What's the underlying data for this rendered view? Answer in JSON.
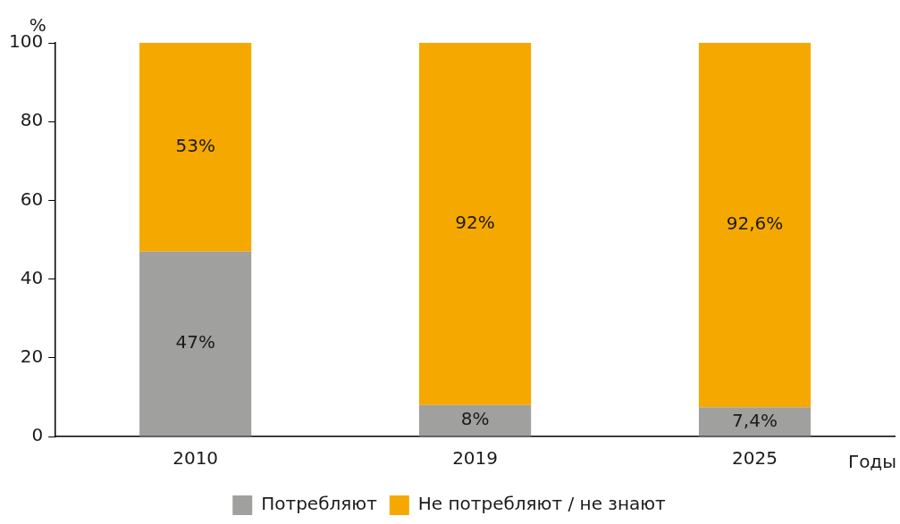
{
  "chart_data": {
    "type": "bar",
    "stacked": true,
    "xlabel": "Годы",
    "ylabel": "%",
    "categories": [
      "2010",
      "2019",
      "2025"
    ],
    "series": [
      {
        "name": "Потребляют",
        "color": "#a0a09f",
        "values": [
          47,
          8,
          7.4
        ],
        "value_labels": [
          "47%",
          "8%",
          "7,4%"
        ]
      },
      {
        "name": "Не потребляют / не знают",
        "color": "#f5a800",
        "values": [
          53,
          92,
          92.6
        ],
        "value_labels": [
          "53%",
          "92%",
          "92,6%"
        ]
      }
    ],
    "ylim": [
      0,
      100
    ],
    "yticks": [
      0,
      20,
      40,
      60,
      80,
      100
    ],
    "grid": false,
    "legend": "bottom"
  }
}
